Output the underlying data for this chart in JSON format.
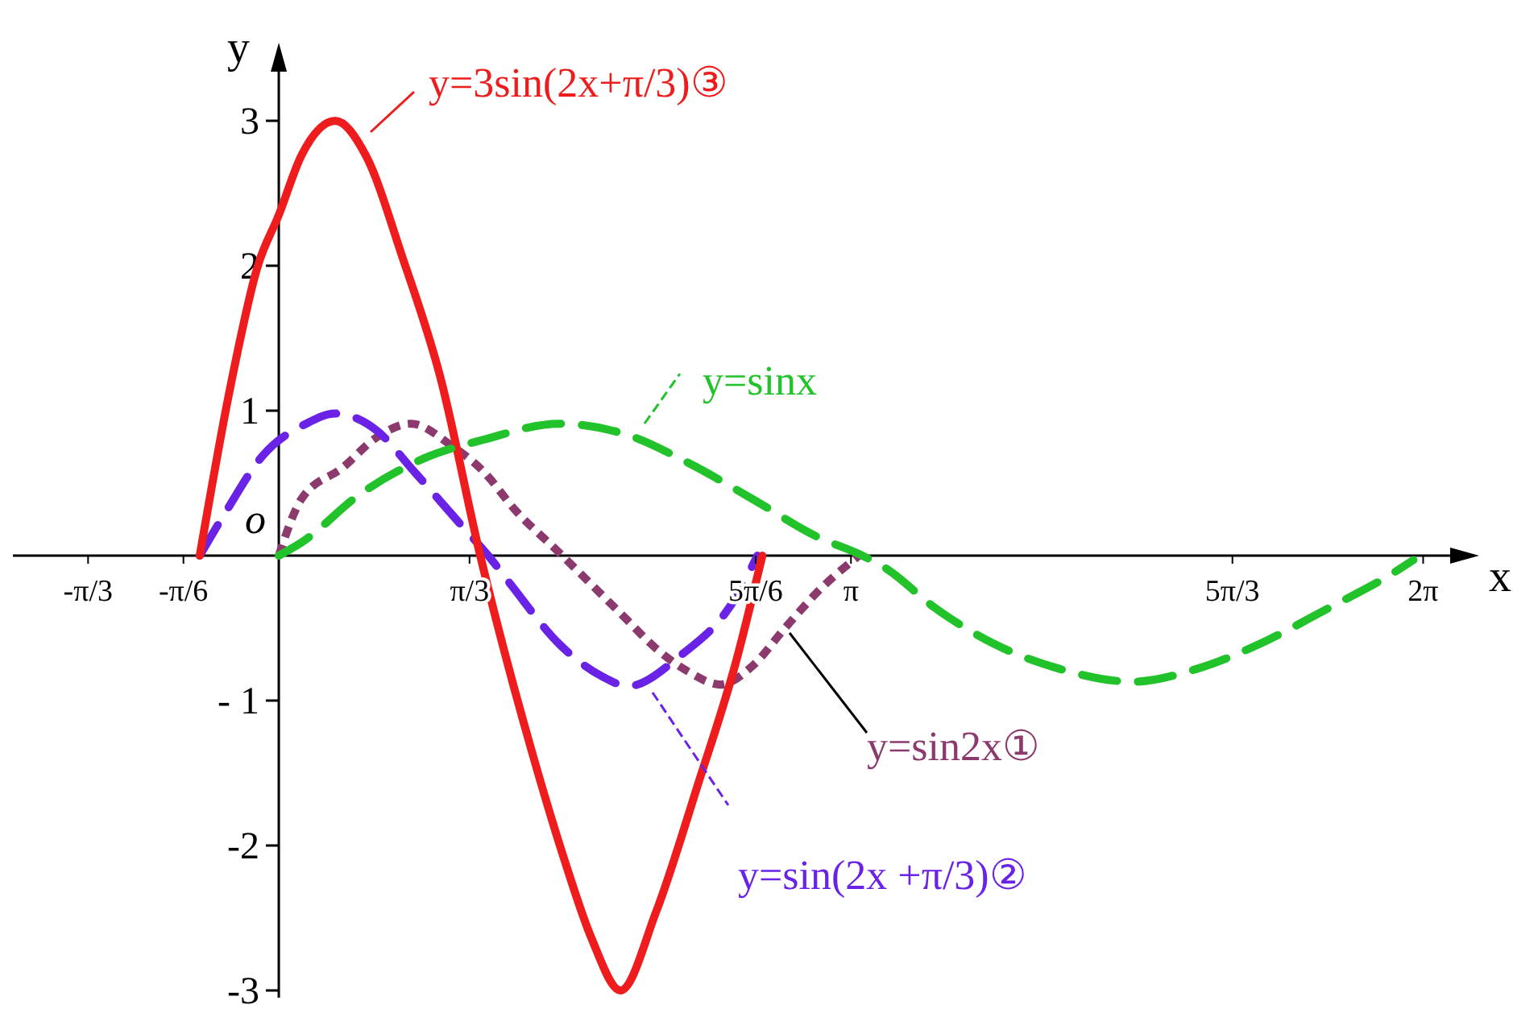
{
  "chart_data": {
    "type": "line",
    "xlabel": "x",
    "ylabel": "y",
    "xlim": [
      -1.46,
      6.52
    ],
    "ylim": [
      -3.05,
      3.45
    ],
    "xticks": [
      {
        "value": -1.0472,
        "label": "-π/3"
      },
      {
        "value": -0.5236,
        "label": "-π/6"
      },
      {
        "value": 1.0472,
        "label": "π/3"
      },
      {
        "value": 2.618,
        "label": "5π/6"
      },
      {
        "value": 3.1416,
        "label": "π"
      },
      {
        "value": 5.236,
        "label": "5π/3"
      },
      {
        "value": 6.2832,
        "label": "2π"
      }
    ],
    "yticks": [
      3,
      2,
      1,
      {
        "value": -1,
        "label": "- 1"
      },
      -2,
      -3
    ],
    "grid": false,
    "legend": "top",
    "marker": "none",
    "annotations": [
      {
        "text": "o",
        "x": 0,
        "y": 0
      }
    ],
    "series": [
      {
        "name": "y=sin2x①",
        "color": "#8c3a6e",
        "line_style": "dotted",
        "x": [
          0,
          0.124,
          0.354,
          0.531,
          0.726,
          0.947,
          1.124,
          1.301,
          1.54,
          1.717,
          1.894,
          2.071,
          2.248,
          2.425,
          2.602,
          2.779,
          2.982,
          3.186
        ],
        "values": [
          0,
          0.39,
          0.61,
          0.81,
          0.91,
          0.76,
          0.58,
          0.31,
          0.02,
          -0.2,
          -0.42,
          -0.64,
          -0.8,
          -0.89,
          -0.76,
          -0.5,
          -0.22,
          0
        ]
      },
      {
        "name": "y=sin(2x +π/3)②",
        "color": "#6a22e6",
        "line_style": "dashed",
        "x": [
          -0.434,
          -0.292,
          -0.088,
          0.15,
          0.31,
          0.531,
          0.743,
          1.009,
          1.15,
          1.274,
          1.54,
          1.77,
          1.92,
          2.195,
          2.513,
          2.628
        ],
        "values": [
          0,
          0.3,
          0.69,
          0.91,
          0.98,
          0.87,
          0.58,
          0.2,
          0,
          -0.2,
          -0.61,
          -0.83,
          -0.9,
          -0.7,
          -0.28,
          0
        ]
      },
      {
        "name": "y=3sin(2x+π/3)③",
        "color": "#ee1c1c",
        "line_style": "solid",
        "x": [
          -0.434,
          -0.265,
          -0.115,
          0,
          0.124,
          0.31,
          0.478,
          0.681,
          0.885,
          1.106,
          1.389,
          1.566,
          1.717,
          1.876,
          2.071,
          2.301,
          2.513,
          2.655
        ],
        "values": [
          0,
          1.17,
          2.0,
          2.35,
          2.76,
          3.0,
          2.76,
          2.05,
          1.24,
          0,
          -1.35,
          -2.09,
          -2.64,
          -3.0,
          -2.46,
          -1.58,
          -0.72,
          0
        ]
      },
      {
        "name": "y=sinx",
        "color": "#22c32a",
        "line_style": "dashed",
        "x": [
          0,
          0.124,
          0.442,
          0.796,
          1.124,
          1.54,
          1.92,
          2.248,
          2.602,
          2.956,
          3.204,
          3.336,
          3.602,
          3.929,
          4.283,
          4.69,
          5.044,
          5.434,
          5.752,
          6.106,
          6.23
        ],
        "values": [
          0,
          0.09,
          0.42,
          0.67,
          0.8,
          0.91,
          0.83,
          0.64,
          0.39,
          0.13,
          0,
          -0.09,
          -0.36,
          -0.61,
          -0.78,
          -0.87,
          -0.78,
          -0.58,
          -0.37,
          -0.13,
          -0.03
        ]
      }
    ]
  }
}
